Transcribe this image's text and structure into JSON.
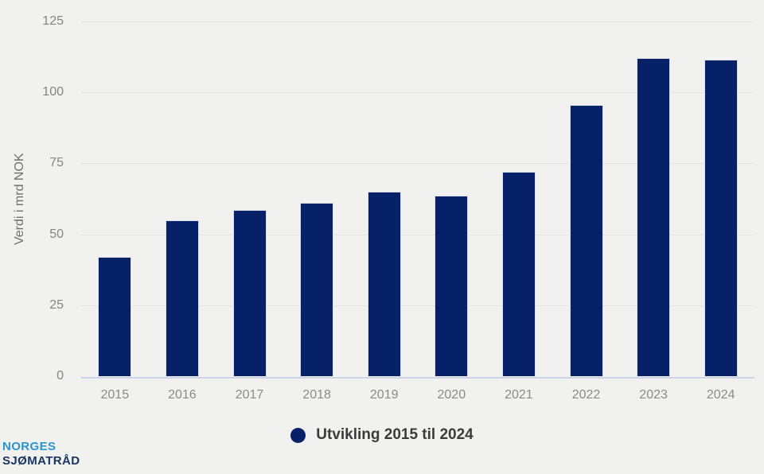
{
  "colors": {
    "background": "#f1f2ef",
    "bar": "#062168",
    "grid": "#e5e6e3",
    "baseline": "#ccd2e8",
    "axis_label_gray": "#8a8a8a",
    "legend_text": "#3b3b3b",
    "logo_blue": "#2a94d0",
    "logo_navy": "#1a3560"
  },
  "chart_data": {
    "type": "bar",
    "title": "",
    "categories": [
      "2015",
      "2016",
      "2017",
      "2018",
      "2019",
      "2020",
      "2021",
      "2022",
      "2023",
      "2024"
    ],
    "values": [
      42,
      55,
      58.5,
      61,
      65,
      63.5,
      72,
      95.5,
      112,
      111.5
    ],
    "xlabel": "",
    "ylabel": "Verdi i mrd NOK",
    "ylim": [
      0,
      125
    ],
    "yticks": [
      0,
      25,
      50,
      75,
      100,
      125
    ],
    "grid": true,
    "legend_position": "bottom",
    "series_name": "Utvikling 2015 til 2024"
  },
  "legend": {
    "label": "Utvikling 2015 til 2024"
  },
  "logo": {
    "line1": "NORGES",
    "line2": "SJØMATRÅD"
  }
}
